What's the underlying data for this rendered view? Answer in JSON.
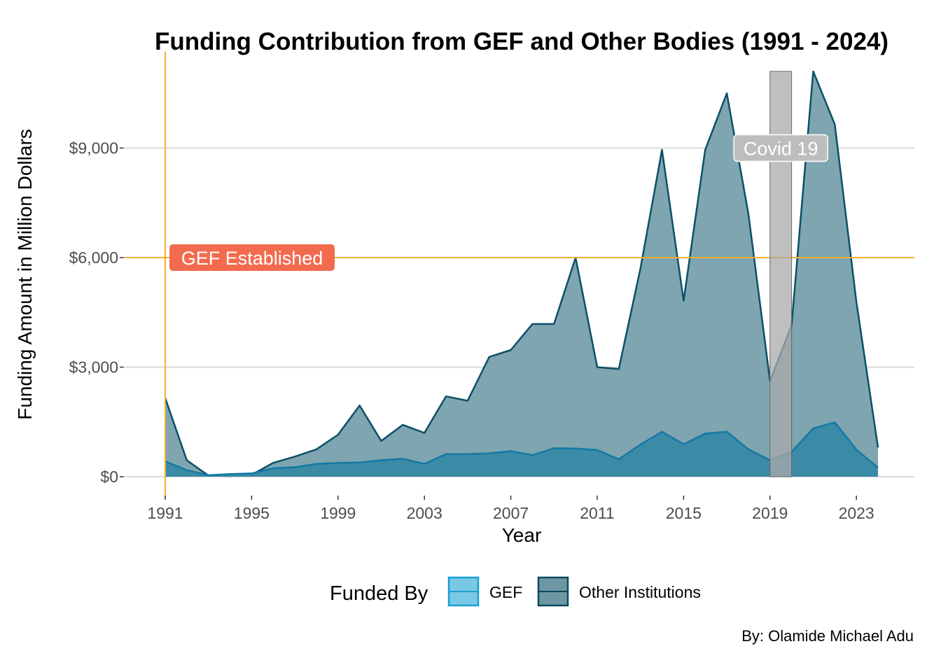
{
  "chart_data": {
    "type": "area",
    "title": "Funding Contribution from GEF and Other Bodies (1991 - 2024)",
    "xlabel": "Year",
    "ylabel": "Funding Amount in Million Dollars",
    "xlim": [
      1991,
      2024
    ],
    "ylim": [
      0,
      11000
    ],
    "x_ticks": [
      "1991",
      "1995",
      "1999",
      "2003",
      "2007",
      "2011",
      "2015",
      "2019",
      "2023"
    ],
    "y_ticks": [
      "$0",
      "$3,000",
      "$6,000",
      "$9,000"
    ],
    "grid": "horizontal major only",
    "legend": {
      "title": "Funded By",
      "position": "bottom",
      "entries": [
        "GEF",
        "Other Institutions"
      ]
    },
    "x": [
      1991,
      1992,
      1993,
      1994,
      1995,
      1996,
      1997,
      1998,
      1999,
      2000,
      2001,
      2002,
      2003,
      2004,
      2005,
      2006,
      2007,
      2008,
      2009,
      2010,
      2011,
      2012,
      2013,
      2014,
      2015,
      2016,
      2017,
      2018,
      2019,
      2020,
      2021,
      2022,
      2023,
      2024
    ],
    "series": [
      {
        "name": "Other Institutions",
        "values": [
          2150,
          450,
          30,
          20,
          50,
          380,
          550,
          750,
          1150,
          1950,
          980,
          1420,
          1200,
          2200,
          2080,
          3280,
          3470,
          4180,
          4180,
          6000,
          3000,
          2950,
          5700,
          8950,
          4820,
          8950,
          10500,
          7200,
          2620,
          4150,
          11100,
          9650,
          4780,
          800
        ],
        "color": "#0b5068",
        "fill": "#7fa5b0"
      },
      {
        "name": "GEF",
        "values": [
          420,
          180,
          40,
          70,
          90,
          230,
          260,
          350,
          380,
          390,
          450,
          490,
          350,
          620,
          620,
          640,
          700,
          590,
          780,
          770,
          730,
          480,
          880,
          1230,
          890,
          1180,
          1230,
          750,
          450,
          680,
          1320,
          1490,
          740,
          250
        ],
        "color": "#1379a3",
        "fill": "#3b8aa6"
      }
    ],
    "annotations": [
      {
        "type": "vline",
        "x": 1991,
        "color": "#f0b030"
      },
      {
        "type": "hline",
        "y": 6000,
        "color": "#f0b030"
      },
      {
        "type": "label",
        "text": "GEF Established",
        "x": 1991,
        "y": 6000,
        "fill": "#f36b4f"
      },
      {
        "type": "rect",
        "x": [
          2019,
          2020
        ],
        "y": [
          0,
          11100
        ],
        "fill": "#aaaaaa"
      },
      {
        "type": "label",
        "text": "Covid 19",
        "x": 2019.5,
        "y": 9000,
        "fill": "#bdbdbd"
      }
    ],
    "caption": "By: Olamide Michael Adu"
  }
}
